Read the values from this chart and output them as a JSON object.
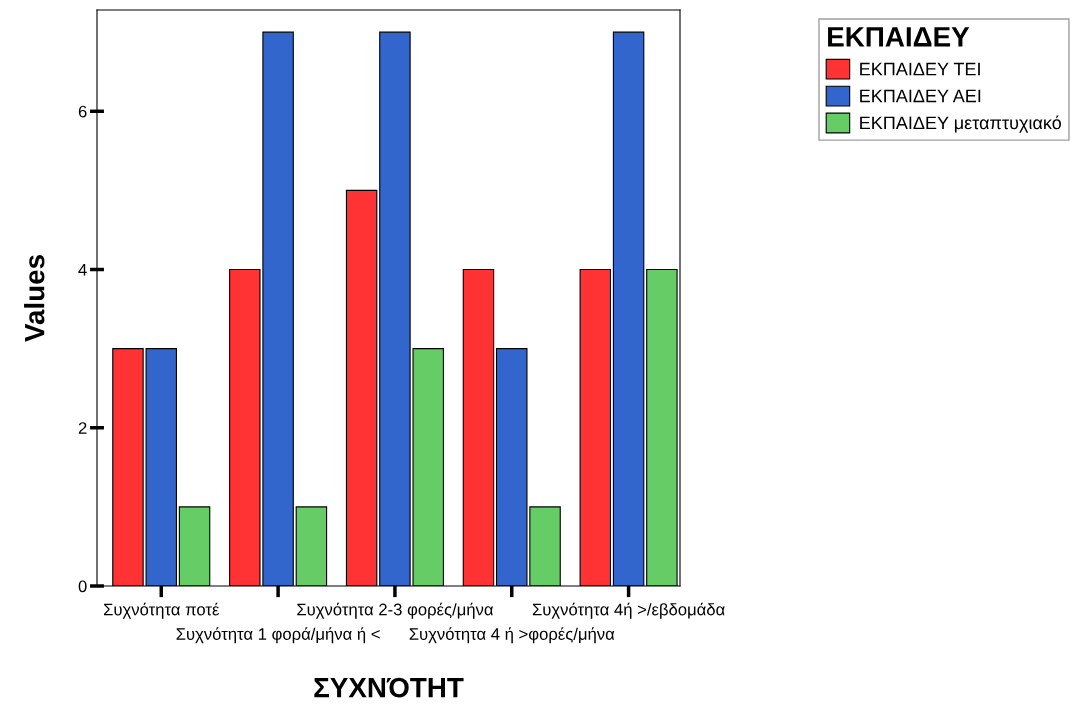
{
  "chart_data": {
    "type": "bar",
    "xlabel": "ΣΥΧΝΌΤΗΤ",
    "ylabel": "Values",
    "legend_title": "ΕΚΠΑΙΔΕΥ",
    "categories": [
      "Συχνότητα ποτέ",
      "Συχνότητα 1 φορά/μήνα ή <",
      "Συχνότητα 2-3 φορές/μήνα",
      "Συχνότητα 4 ή >φορές/μήνα",
      "Συχνότητα 4ή >/εβδομάδα"
    ],
    "series": [
      {
        "name": "ΕΚΠΑΙΔΕΥ ΤΕΙ",
        "color": "#ff3333",
        "values": [
          3,
          4,
          5,
          4,
          4
        ]
      },
      {
        "name": "ΕΚΠΑΙΔΕΥ ΑΕΙ",
        "color": "#3366cc",
        "values": [
          3,
          7,
          7,
          3,
          7
        ]
      },
      {
        "name": "ΕΚΠΑΙΔΕΥ μεταπτυχιακό",
        "color": "#66cc66",
        "values": [
          1,
          1,
          3,
          1,
          4
        ]
      }
    ],
    "ylim": [
      0,
      7.28
    ],
    "yticks": [
      0,
      2,
      4,
      6
    ],
    "grid": false,
    "legend": "top right"
  }
}
